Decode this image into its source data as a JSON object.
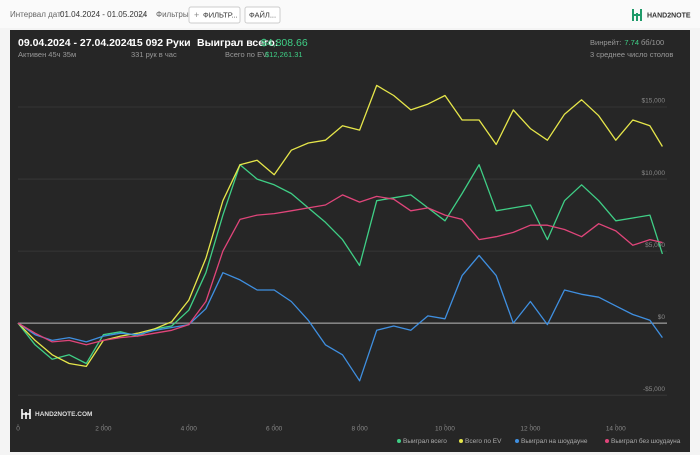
{
  "toolbar": {
    "date_label": "Интервал дат:",
    "date_range": "01.04.2024 - 01.05.2024",
    "filters_label": "Фильтры:",
    "filter_button": "ФИЛЬТР...",
    "file_button": "ФАЙЛ...",
    "logo": "HAND2NOTE"
  },
  "summary": {
    "period": "09.04.2024 - 27.04.2024",
    "active": "Активен 45ч 35м",
    "hands": "15 092 Руки",
    "hands_per_hour": "331 рук в час",
    "won_label": "Выиграл всего:",
    "won_value": "$4,808.66",
    "ev_label": "Всего по EV",
    "ev_value": "$12,261.31",
    "winrate_label": "Винрейт:",
    "winrate_value": "7.74",
    "winrate_unit": "бб/100",
    "tables": "3 среднее число столов"
  },
  "chart_data": {
    "type": "line",
    "watermark": "HAND2NOTE.COM",
    "x": [
      0,
      400,
      800,
      1200,
      1600,
      2000,
      2400,
      2800,
      3200,
      3600,
      4000,
      4400,
      4800,
      5200,
      5600,
      6000,
      6400,
      6800,
      7200,
      7600,
      8000,
      8400,
      8800,
      9200,
      9600,
      10000,
      10400,
      10800,
      11200,
      11600,
      12000,
      12400,
      12800,
      13200,
      13600,
      14000,
      14400,
      14800,
      15092
    ],
    "series": [
      {
        "name": "Выиграл всего",
        "color": "#3fcf86",
        "values": [
          0,
          -1500,
          -2500,
          -2200,
          -2800,
          -800,
          -600,
          -900,
          -400,
          -200,
          900,
          3500,
          7500,
          11000,
          10000,
          9600,
          9000,
          8000,
          7000,
          5800,
          4000,
          8500,
          8700,
          8900,
          8000,
          7100,
          9000,
          11000,
          7800,
          8000,
          8200,
          5800,
          8500,
          9600,
          8500,
          7100,
          7300,
          7500,
          4808.66
        ]
      },
      {
        "name": "Всего по EV",
        "color": "#e6e64a",
        "values": [
          0,
          -1200,
          -2200,
          -2800,
          -3000,
          -1200,
          -900,
          -700,
          -400,
          100,
          1600,
          4500,
          8500,
          11000,
          11300,
          10300,
          12000,
          12500,
          12700,
          13700,
          13400,
          16500,
          15800,
          14800,
          15200,
          15800,
          14100,
          14100,
          12400,
          14800,
          13500,
          12700,
          14500,
          15500,
          14400,
          12700,
          14100,
          13700,
          12261.31
        ]
      },
      {
        "name": "Выиграл на шоудауне",
        "color": "#3f8fe0",
        "values": [
          0,
          -800,
          -1200,
          -1000,
          -1300,
          -900,
          -700,
          -800,
          -500,
          -300,
          -100,
          1000,
          3500,
          3000,
          2300,
          2300,
          1500,
          200,
          -1500,
          -2200,
          -4000,
          -500,
          -200,
          -500,
          500,
          300,
          3300,
          4700,
          3300,
          0,
          1500,
          -100,
          2300,
          2000,
          1800,
          1200,
          600,
          200,
          -1000
        ]
      },
      {
        "name": "Выиграл без шоудауна",
        "color": "#e0457a",
        "values": [
          0,
          -700,
          -1300,
          -1200,
          -1500,
          -1200,
          -1000,
          -900,
          -700,
          -500,
          -100,
          1500,
          5000,
          7200,
          7500,
          7600,
          7800,
          8000,
          8200,
          8900,
          8400,
          8800,
          8600,
          7800,
          8000,
          7500,
          7200,
          5800,
          6000,
          6300,
          6800,
          6800,
          6500,
          6000,
          6900,
          6400,
          5400,
          5800,
          5600
        ]
      }
    ],
    "xlim": [
      0,
      15200
    ],
    "xticks": [
      0,
      {
        "value": 2000,
        "label": "2 000"
      },
      {
        "value": 4000,
        "label": "4 000"
      },
      {
        "value": 6000,
        "label": "6 000"
      },
      {
        "value": 8000,
        "label": "8 000"
      },
      {
        "value": 10000,
        "label": "10 000"
      },
      {
        "value": 12000,
        "label": "12 000"
      },
      {
        "value": 14000,
        "label": "14 000"
      }
    ],
    "ylim": [
      -7000,
      17500
    ],
    "yticks": [
      {
        "value": -5000,
        "label": "-$5,000"
      },
      {
        "value": 0,
        "label": "$0"
      },
      {
        "value": 5000,
        "label": "$5,000"
      },
      {
        "value": 10000,
        "label": "$10,000"
      },
      {
        "value": 15000,
        "label": "$15,000"
      }
    ],
    "grid": true
  }
}
